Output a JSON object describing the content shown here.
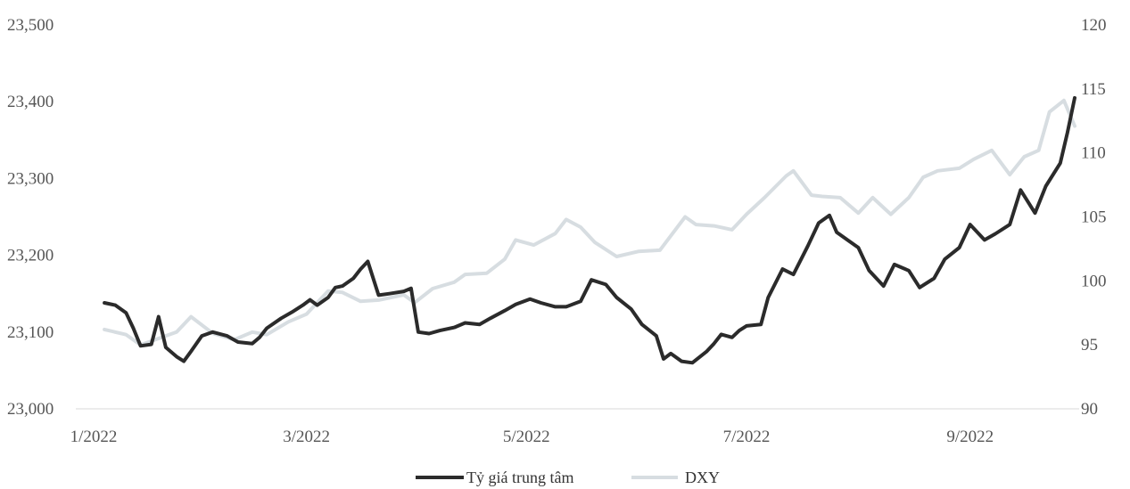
{
  "chart_data": {
    "type": "line",
    "title": "",
    "xlabel": "",
    "ylabel": "",
    "x_ticks": [
      "1/2022",
      "3/2022",
      "5/2022",
      "7/2022",
      "9/2022"
    ],
    "x_range": [
      "2022-01-01",
      "2022-09-30"
    ],
    "y_left": {
      "ticks": [
        "23,000",
        "23,100",
        "23,200",
        "23,300",
        "23,400",
        "23,500"
      ],
      "min": 23000,
      "max": 23500
    },
    "y_right": {
      "ticks": [
        "90",
        "95",
        "100",
        "105",
        "110",
        "115",
        "120"
      ],
      "min": 90,
      "max": 120
    },
    "grid": false,
    "legend_position": "bottom-center",
    "colors": {
      "fx": "#2b2b2b",
      "dxy": "#d7dde1",
      "baseline": "#e6e6e6"
    },
    "series": [
      {
        "name": "Tỷ giá trung tâm",
        "axis": "left",
        "points": [
          [
            "2022-01-04",
            23138
          ],
          [
            "2022-01-07",
            23135
          ],
          [
            "2022-01-10",
            23125
          ],
          [
            "2022-01-12",
            23105
          ],
          [
            "2022-01-14",
            23082
          ],
          [
            "2022-01-17",
            23084
          ],
          [
            "2022-01-19",
            23120
          ],
          [
            "2022-01-21",
            23080
          ],
          [
            "2022-01-24",
            23068
          ],
          [
            "2022-01-26",
            23062
          ],
          [
            "2022-01-28",
            23075
          ],
          [
            "2022-01-31",
            23095
          ],
          [
            "2022-02-03",
            23100
          ],
          [
            "2022-02-07",
            23095
          ],
          [
            "2022-02-10",
            23087
          ],
          [
            "2022-02-14",
            23085
          ],
          [
            "2022-02-16",
            23093
          ],
          [
            "2022-02-18",
            23105
          ],
          [
            "2022-02-22",
            23118
          ],
          [
            "2022-02-25",
            23126
          ],
          [
            "2022-02-28",
            23135
          ],
          [
            "2022-03-02",
            23142
          ],
          [
            "2022-03-04",
            23135
          ],
          [
            "2022-03-07",
            23145
          ],
          [
            "2022-03-09",
            23158
          ],
          [
            "2022-03-11",
            23160
          ],
          [
            "2022-03-14",
            23170
          ],
          [
            "2022-03-16",
            23182
          ],
          [
            "2022-03-18",
            23192
          ],
          [
            "2022-03-21",
            23148
          ],
          [
            "2022-03-24",
            23150
          ],
          [
            "2022-03-28",
            23153
          ],
          [
            "2022-03-30",
            23157
          ],
          [
            "2022-04-01",
            23100
          ],
          [
            "2022-04-04",
            23098
          ],
          [
            "2022-04-07",
            23102
          ],
          [
            "2022-04-11",
            23106
          ],
          [
            "2022-04-14",
            23112
          ],
          [
            "2022-04-18",
            23110
          ],
          [
            "2022-04-21",
            23118
          ],
          [
            "2022-04-25",
            23128
          ],
          [
            "2022-04-28",
            23136
          ],
          [
            "2022-05-02",
            23143
          ],
          [
            "2022-05-05",
            23138
          ],
          [
            "2022-05-09",
            23133
          ],
          [
            "2022-05-12",
            23133
          ],
          [
            "2022-05-16",
            23140
          ],
          [
            "2022-05-19",
            23168
          ],
          [
            "2022-05-23",
            23162
          ],
          [
            "2022-05-26",
            23145
          ],
          [
            "2022-05-30",
            23130
          ],
          [
            "2022-06-02",
            23110
          ],
          [
            "2022-06-06",
            23095
          ],
          [
            "2022-06-08",
            23065
          ],
          [
            "2022-06-10",
            23072
          ],
          [
            "2022-06-13",
            23062
          ],
          [
            "2022-06-16",
            23060
          ],
          [
            "2022-06-20",
            23075
          ],
          [
            "2022-06-22",
            23085
          ],
          [
            "2022-06-24",
            23097
          ],
          [
            "2022-06-27",
            23093
          ],
          [
            "2022-06-29",
            23102
          ],
          [
            "2022-07-01",
            23108
          ],
          [
            "2022-07-05",
            23110
          ],
          [
            "2022-07-07",
            23145
          ],
          [
            "2022-07-11",
            23182
          ],
          [
            "2022-07-14",
            23175
          ],
          [
            "2022-07-18",
            23212
          ],
          [
            "2022-07-21",
            23242
          ],
          [
            "2022-07-24",
            23252
          ],
          [
            "2022-07-26",
            23230
          ],
          [
            "2022-07-29",
            23220
          ],
          [
            "2022-08-01",
            23210
          ],
          [
            "2022-08-04",
            23180
          ],
          [
            "2022-08-08",
            23160
          ],
          [
            "2022-08-11",
            23188
          ],
          [
            "2022-08-15",
            23180
          ],
          [
            "2022-08-18",
            23158
          ],
          [
            "2022-08-22",
            23170
          ],
          [
            "2022-08-25",
            23195
          ],
          [
            "2022-08-29",
            23210
          ],
          [
            "2022-09-01",
            23240
          ],
          [
            "2022-09-05",
            23220
          ],
          [
            "2022-09-08",
            23228
          ],
          [
            "2022-09-12",
            23240
          ],
          [
            "2022-09-15",
            23285
          ],
          [
            "2022-09-19",
            23255
          ],
          [
            "2022-09-22",
            23290
          ],
          [
            "2022-09-26",
            23320
          ],
          [
            "2022-09-28",
            23360
          ],
          [
            "2022-09-30",
            23405
          ]
        ]
      },
      {
        "name": "DXY",
        "axis": "right",
        "points": [
          [
            "2022-01-04",
            96.2
          ],
          [
            "2022-01-10",
            95.8
          ],
          [
            "2022-01-14",
            95.0
          ],
          [
            "2022-01-19",
            95.5
          ],
          [
            "2022-01-24",
            96.0
          ],
          [
            "2022-01-28",
            97.2
          ],
          [
            "2022-02-03",
            95.9
          ],
          [
            "2022-02-09",
            95.4
          ],
          [
            "2022-02-14",
            96.0
          ],
          [
            "2022-02-18",
            95.8
          ],
          [
            "2022-02-24",
            96.8
          ],
          [
            "2022-03-01",
            97.4
          ],
          [
            "2022-03-07",
            99.2
          ],
          [
            "2022-03-11",
            99.1
          ],
          [
            "2022-03-16",
            98.4
          ],
          [
            "2022-03-21",
            98.5
          ],
          [
            "2022-03-28",
            98.9
          ],
          [
            "2022-03-31",
            98.3
          ],
          [
            "2022-04-05",
            99.4
          ],
          [
            "2022-04-11",
            99.9
          ],
          [
            "2022-04-14",
            100.5
          ],
          [
            "2022-04-20",
            100.6
          ],
          [
            "2022-04-25",
            101.7
          ],
          [
            "2022-04-28",
            103.2
          ],
          [
            "2022-05-03",
            102.8
          ],
          [
            "2022-05-09",
            103.7
          ],
          [
            "2022-05-12",
            104.8
          ],
          [
            "2022-05-16",
            104.2
          ],
          [
            "2022-05-20",
            103.0
          ],
          [
            "2022-05-26",
            101.9
          ],
          [
            "2022-06-01",
            102.3
          ],
          [
            "2022-06-07",
            102.4
          ],
          [
            "2022-06-14",
            105.0
          ],
          [
            "2022-06-17",
            104.4
          ],
          [
            "2022-06-22",
            104.3
          ],
          [
            "2022-06-27",
            104.0
          ],
          [
            "2022-07-01",
            105.2
          ],
          [
            "2022-07-06",
            106.5
          ],
          [
            "2022-07-12",
            108.2
          ],
          [
            "2022-07-14",
            108.6
          ],
          [
            "2022-07-19",
            106.7
          ],
          [
            "2022-07-22",
            106.6
          ],
          [
            "2022-07-27",
            106.5
          ],
          [
            "2022-08-01",
            105.3
          ],
          [
            "2022-08-05",
            106.5
          ],
          [
            "2022-08-10",
            105.2
          ],
          [
            "2022-08-15",
            106.5
          ],
          [
            "2022-08-19",
            108.1
          ],
          [
            "2022-08-23",
            108.6
          ],
          [
            "2022-08-29",
            108.8
          ],
          [
            "2022-09-02",
            109.5
          ],
          [
            "2022-09-07",
            110.2
          ],
          [
            "2022-09-12",
            108.3
          ],
          [
            "2022-09-16",
            109.7
          ],
          [
            "2022-09-20",
            110.2
          ],
          [
            "2022-09-23",
            113.2
          ],
          [
            "2022-09-27",
            114.1
          ],
          [
            "2022-09-30",
            112.1
          ]
        ]
      }
    ]
  },
  "legend": {
    "items": [
      {
        "label": "Tỷ giá trung tâm",
        "color": "#2b2b2b"
      },
      {
        "label": "DXY",
        "color": "#d7dde1"
      }
    ]
  }
}
